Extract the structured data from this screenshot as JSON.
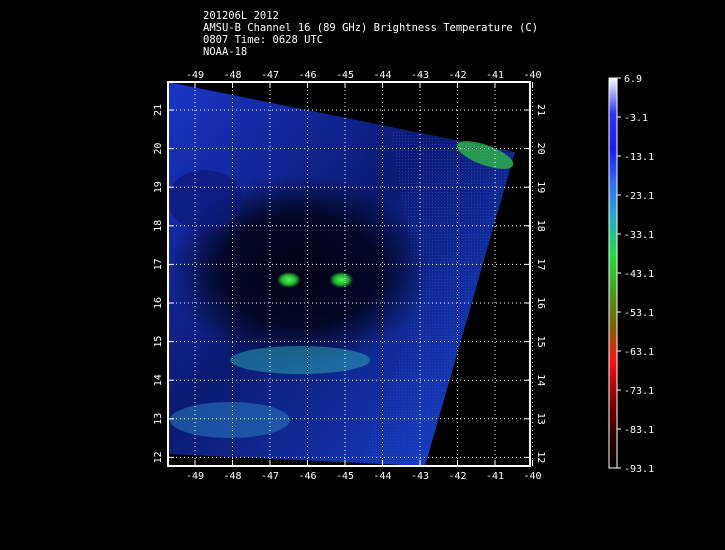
{
  "header": {
    "line1": "201206L 2012",
    "line2": "AMSU-B Channel 16 (89 GHz) Brightness Temperature (C)",
    "line3": "0807 Time: 0628 UTC",
    "line4": "NOAA-18"
  },
  "map": {
    "lon_ticks": [
      "-49",
      "-48",
      "-47",
      "-46",
      "-45",
      "-44",
      "-43",
      "-42",
      "-41",
      "-40"
    ],
    "lat_ticks": [
      "21",
      "20",
      "19",
      "18",
      "17",
      "16",
      "15",
      "14",
      "13",
      "12"
    ],
    "grid": true,
    "hotspots": [
      {
        "lon": -46.5,
        "lat": 16.6,
        "color": "#30e040"
      },
      {
        "lon": -45.1,
        "lat": 16.6,
        "color": "#30e040"
      }
    ]
  },
  "colorbar": {
    "labels": [
      "6.9",
      "-3.1",
      "-13.1",
      "-23.1",
      "-33.1",
      "-43.1",
      "-53.1",
      "-63.1",
      "-73.1",
      "-83.1",
      "-93.1"
    ],
    "stops": [
      "#ffffff",
      "#3030ff",
      "#1a1aff",
      "#3070ff",
      "#20b0c0",
      "#20e040",
      "#40a020",
      "#806000",
      "#ff1010",
      "#900000",
      "#300000",
      "#000000"
    ]
  }
}
